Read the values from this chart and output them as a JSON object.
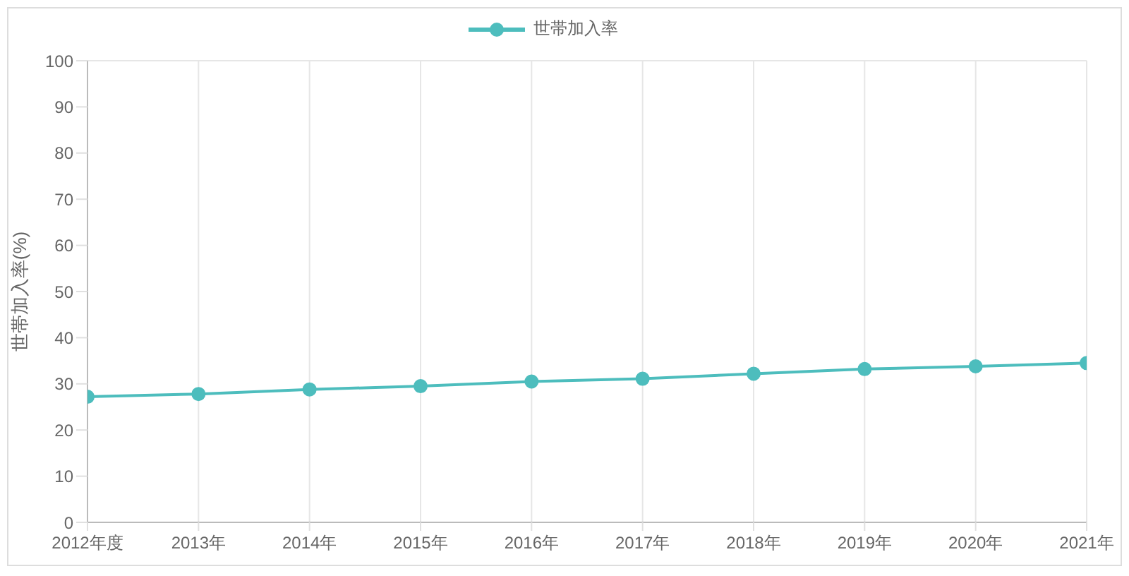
{
  "chart_data": {
    "type": "line",
    "categories": [
      "2012年度",
      "2013年",
      "2014年",
      "2015年",
      "2016年",
      "2017年",
      "2018年",
      "2019年",
      "2020年",
      "2021年"
    ],
    "series": [
      {
        "name": "世帯加入率",
        "color": "#4dbdbd",
        "values": [
          27.2,
          27.8,
          28.8,
          29.5,
          30.5,
          31.1,
          32.2,
          33.2,
          33.8,
          34.5
        ]
      }
    ],
    "ylabel": "世帯加入率(%)",
    "ylim": [
      0,
      100
    ],
    "yticks": [
      0,
      10,
      20,
      30,
      40,
      50,
      60,
      70,
      80,
      90,
      100
    ],
    "grid": true,
    "legend": "top",
    "marker": "circle",
    "line_style": "solid"
  }
}
